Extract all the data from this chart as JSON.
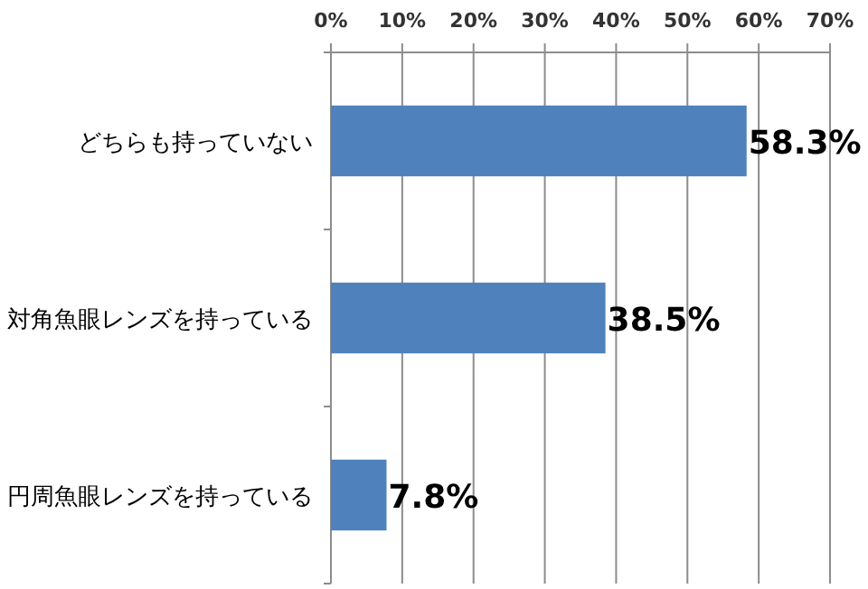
{
  "chart_data": {
    "type": "bar",
    "orientation": "horizontal",
    "categories": [
      "どちらも持っていない",
      "対角魚眼レンズを持っている",
      "円周魚眼レンズを持っている"
    ],
    "values": [
      58.3,
      38.5,
      7.8
    ],
    "value_labels": [
      "58.3%",
      "38.5%",
      "7.8%"
    ],
    "color": "#4f81bd",
    "xlim": [
      0,
      70
    ],
    "xticks": [
      {
        "value": 0,
        "label": "0%"
      },
      {
        "value": 10,
        "label": "10%"
      },
      {
        "value": 20,
        "label": "20%"
      },
      {
        "value": 30,
        "label": "30%"
      },
      {
        "value": 40,
        "label": "40%"
      },
      {
        "value": 50,
        "label": "50%"
      },
      {
        "value": 60,
        "label": "60%"
      },
      {
        "value": 70,
        "label": "70%"
      }
    ],
    "grid": "x"
  }
}
